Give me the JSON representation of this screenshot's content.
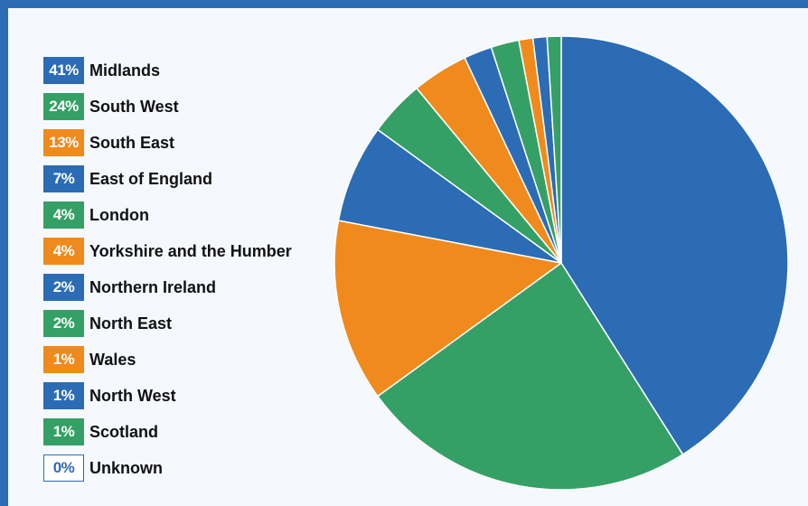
{
  "colors": {
    "blue": "#2b6cb5",
    "green": "#35a065",
    "orange": "#f08a1c"
  },
  "chart_data": {
    "type": "pie",
    "title": "",
    "slices": [
      {
        "label": "Midlands",
        "value": 41,
        "pct_label": "41%",
        "color": "#2b6cb5"
      },
      {
        "label": "South West",
        "value": 24,
        "pct_label": "24%",
        "color": "#35a065"
      },
      {
        "label": "South East",
        "value": 13,
        "pct_label": "13%",
        "color": "#f08a1c"
      },
      {
        "label": "East of England",
        "value": 7,
        "pct_label": "7%",
        "color": "#2b6cb5"
      },
      {
        "label": "London",
        "value": 4,
        "pct_label": "4%",
        "color": "#35a065"
      },
      {
        "label": "Yorkshire and the Humber",
        "value": 4,
        "pct_label": "4%",
        "color": "#f08a1c"
      },
      {
        "label": "Northern Ireland",
        "value": 2,
        "pct_label": "2%",
        "color": "#2b6cb5"
      },
      {
        "label": "North East",
        "value": 2,
        "pct_label": "2%",
        "color": "#35a065"
      },
      {
        "label": "Wales",
        "value": 1,
        "pct_label": "1%",
        "color": "#f08a1c"
      },
      {
        "label": "North West",
        "value": 1,
        "pct_label": "1%",
        "color": "#2b6cb5"
      },
      {
        "label": "Scotland",
        "value": 1,
        "pct_label": "1%",
        "color": "#35a065"
      },
      {
        "label": "Unknown",
        "value": 0,
        "pct_label": "0%",
        "color": "#2b6cb5",
        "outlined": true
      }
    ],
    "legend_position": "left"
  }
}
